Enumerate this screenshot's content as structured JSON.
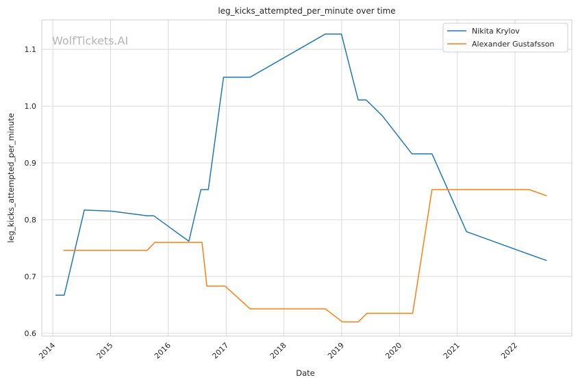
{
  "chart_data": {
    "type": "line",
    "title": "leg_kicks_attempted_per_minute over time",
    "xlabel": "Date",
    "ylabel": "leg_kicks_attempted_per_minute",
    "watermark": "WolfTickets.AI",
    "x_axis": {
      "type": "date",
      "min": "2013-10-23",
      "max": "2022-12-26"
    },
    "ylim": [
      0.595,
      1.152
    ],
    "x_ticks": [
      "2014",
      "2015",
      "2016",
      "2017",
      "2018",
      "2019",
      "2020",
      "2021",
      "2022"
    ],
    "y_ticks": [
      0.6,
      0.7,
      0.8,
      0.9,
      1.0,
      1.1
    ],
    "grid": true,
    "legend_position": "top-right",
    "series": [
      {
        "name": "Nikita Krylov",
        "color": "#1f77b4",
        "points": [
          [
            "2014-01-18",
            0.667
          ],
          [
            "2014-03-14",
            0.667
          ],
          [
            "2014-07-19",
            0.817
          ],
          [
            "2015-01-08",
            0.815
          ],
          [
            "2015-08-20",
            0.807
          ],
          [
            "2015-10-01",
            0.807
          ],
          [
            "2016-05-10",
            0.762
          ],
          [
            "2016-07-25",
            0.853
          ],
          [
            "2016-09-10",
            0.853
          ],
          [
            "2016-12-15",
            1.051
          ],
          [
            "2017-06-01",
            1.051
          ],
          [
            "2018-09-20",
            1.127
          ],
          [
            "2018-12-30",
            1.127
          ],
          [
            "2019-04-15",
            1.011
          ],
          [
            "2019-06-05",
            1.011
          ],
          [
            "2019-09-15",
            0.983
          ],
          [
            "2020-03-20",
            0.916
          ],
          [
            "2020-07-25",
            0.916
          ],
          [
            "2021-02-28",
            0.779
          ],
          [
            "2022-02-10",
            0.744
          ],
          [
            "2022-07-20",
            0.728
          ]
        ]
      },
      {
        "name": "Alexander Gustafsson",
        "color": "#ff7f0e",
        "points": [
          [
            "2014-03-08",
            0.746
          ],
          [
            "2015-08-20",
            0.746
          ],
          [
            "2015-10-08",
            0.76
          ],
          [
            "2016-08-01",
            0.76
          ],
          [
            "2016-09-01",
            0.683
          ],
          [
            "2016-12-25",
            0.683
          ],
          [
            "2017-06-01",
            0.643
          ],
          [
            "2018-09-20",
            0.643
          ],
          [
            "2019-01-05",
            0.62
          ],
          [
            "2019-04-15",
            0.62
          ],
          [
            "2019-06-10",
            0.635
          ],
          [
            "2020-03-25",
            0.635
          ],
          [
            "2020-07-25",
            0.853
          ],
          [
            "2022-04-01",
            0.853
          ],
          [
            "2022-07-20",
            0.842
          ]
        ]
      }
    ]
  }
}
